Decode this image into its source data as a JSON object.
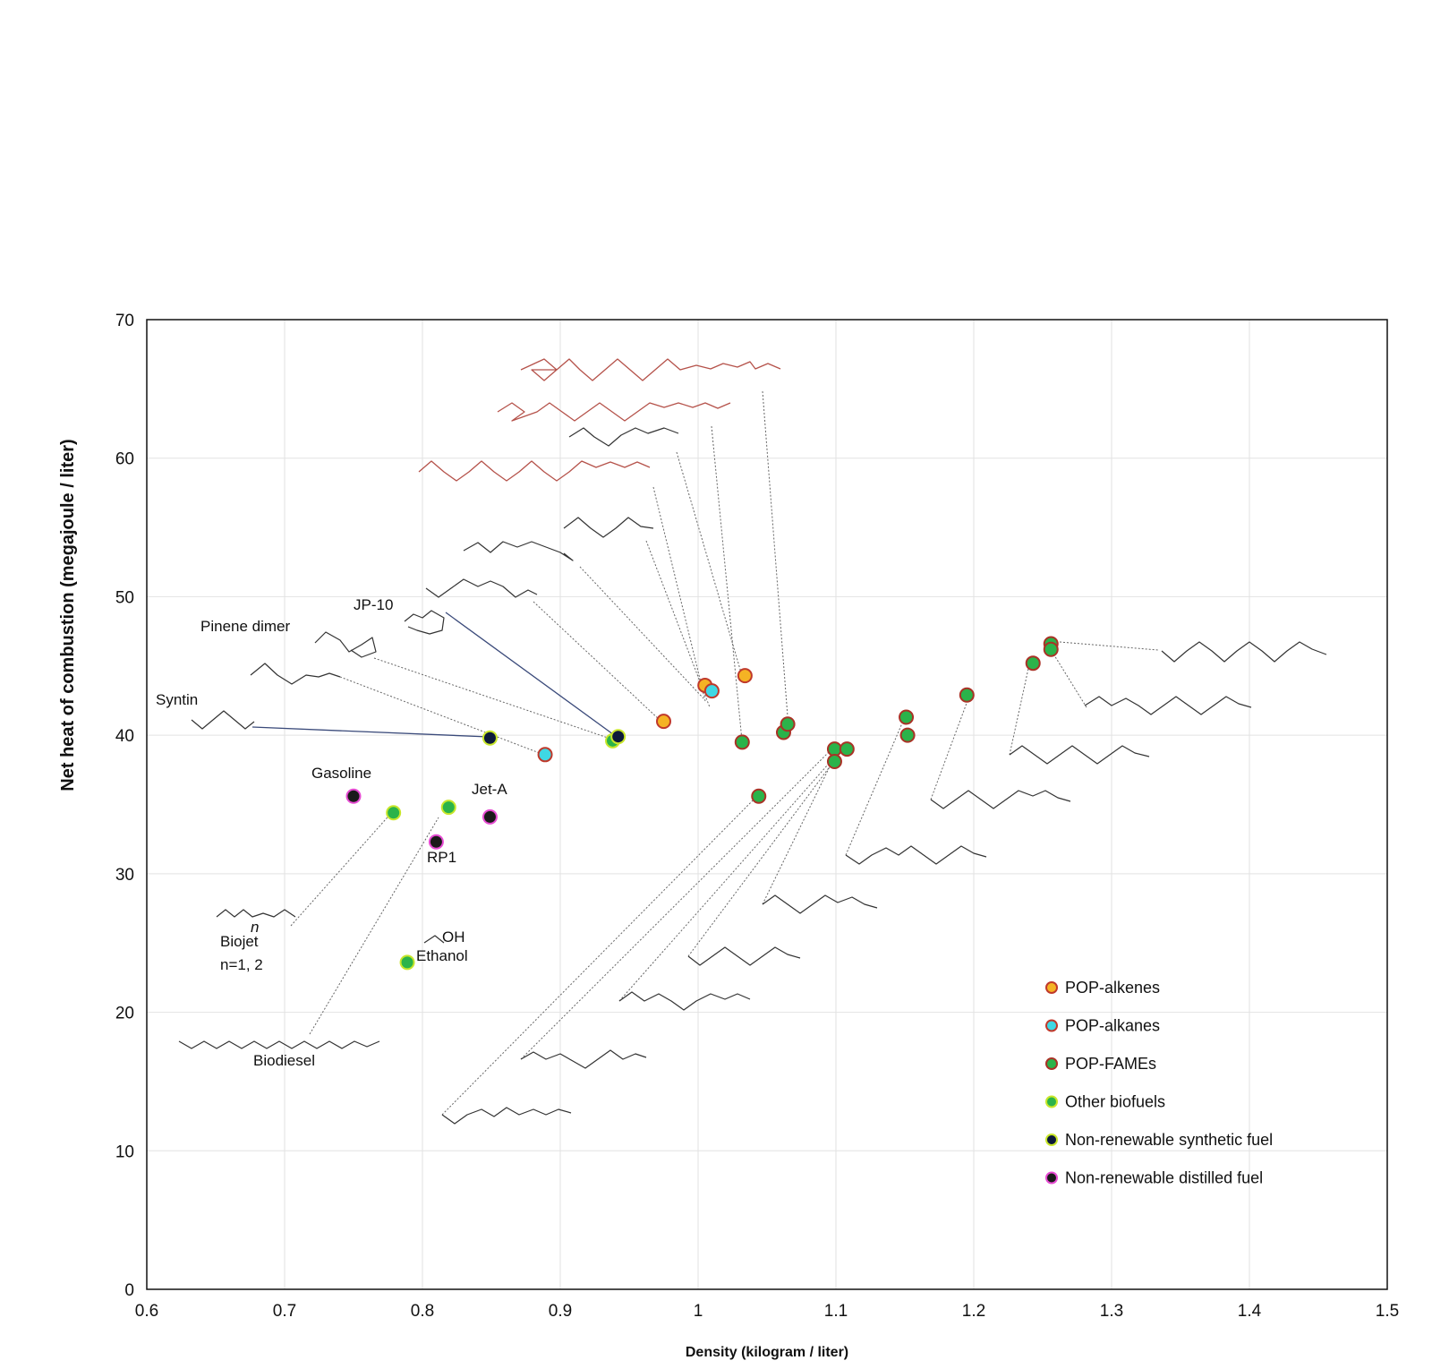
{
  "chart_data": {
    "type": "scatter",
    "xlabel": "Density (kilogram / liter)",
    "ylabel": "Net heat of combustion (megajoule / liter)",
    "xlim": [
      0.6,
      1.5
    ],
    "ylim": [
      0,
      70
    ],
    "x_ticks": [
      "0.6",
      "0.7",
      "0.8",
      "0.9",
      "1",
      "1.1",
      "1.2",
      "1.3",
      "1.4",
      "1.5"
    ],
    "y_ticks": [
      "0",
      "10",
      "20",
      "30",
      "40",
      "50",
      "60",
      "70"
    ],
    "grid": true,
    "legend_position": "bottom-right",
    "series": [
      {
        "name": "POP-alkenes",
        "fill": "#f5b324",
        "stroke": "#c0392b",
        "points": [
          [
            0.975,
            41.0
          ],
          [
            1.005,
            43.6
          ],
          [
            1.034,
            44.3
          ]
        ]
      },
      {
        "name": "POP-alkanes",
        "fill": "#3fd8e4",
        "stroke": "#c0392b",
        "points": [
          [
            0.889,
            38.6
          ],
          [
            1.01,
            43.2
          ]
        ]
      },
      {
        "name": "POP-FAMEs",
        "fill": "#2bb34a",
        "stroke": "#a93226",
        "points": [
          [
            1.032,
            39.5
          ],
          [
            1.044,
            35.6
          ],
          [
            1.062,
            40.2
          ],
          [
            1.065,
            40.8
          ],
          [
            1.099,
            39.0
          ],
          [
            1.099,
            38.1
          ],
          [
            1.108,
            39.0
          ],
          [
            1.151,
            41.3
          ],
          [
            1.152,
            40.0
          ],
          [
            1.195,
            42.9
          ],
          [
            1.243,
            45.2
          ],
          [
            1.256,
            46.6
          ],
          [
            1.256,
            46.2
          ]
        ]
      },
      {
        "name": "Other biofuels",
        "fill": "#2bb34a",
        "stroke": "#c8e62a",
        "points": [
          [
            0.779,
            34.4
          ],
          [
            0.819,
            34.8
          ],
          [
            0.789,
            23.6
          ],
          [
            0.938,
            39.6
          ]
        ]
      },
      {
        "name": "Non-renewable synthetic fuel",
        "fill": "#0c1a3a",
        "stroke": "#c8e62a",
        "points": [
          [
            0.849,
            39.8
          ],
          [
            0.942,
            39.9
          ]
        ]
      },
      {
        "name": "Non-renewable distilled fuel",
        "fill": "#1a1a1a",
        "stroke": "#e64bd2",
        "points": [
          [
            0.75,
            35.6
          ],
          [
            0.81,
            32.3
          ],
          [
            0.849,
            34.1
          ]
        ]
      }
    ],
    "annotations": [
      {
        "text": "Syntin"
      },
      {
        "text": "Pinene dimer"
      },
      {
        "text": "JP-10"
      },
      {
        "text": "Gasoline"
      },
      {
        "text": "Jet-A"
      },
      {
        "text": "RP1"
      },
      {
        "text": "Biojet"
      },
      {
        "text": "n=1, 2"
      },
      {
        "text": "n"
      },
      {
        "text": "OH"
      },
      {
        "text": "Ethanol"
      },
      {
        "text": "Biodiesel"
      }
    ]
  }
}
